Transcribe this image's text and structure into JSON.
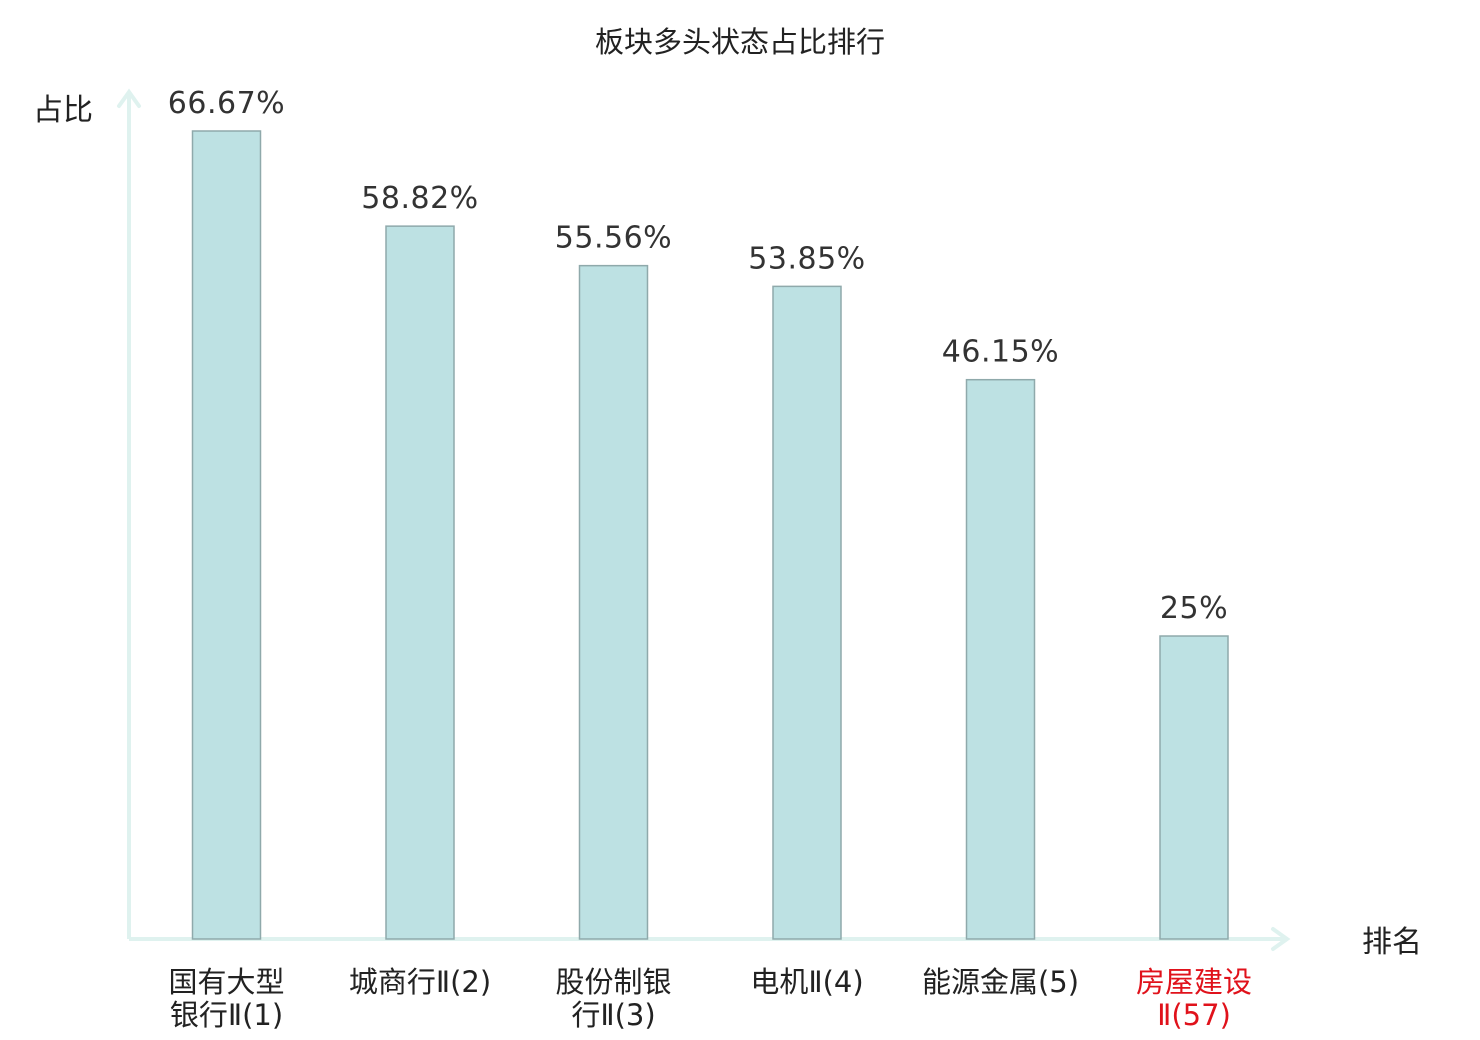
{
  "chart_data": {
    "type": "bar",
    "title": "板块多头状态占比排行",
    "ylabel": "占比",
    "xlabel": "排名",
    "ylim": [
      0,
      70
    ],
    "grid": false,
    "categories": [
      [
        "国有大型",
        "银行Ⅱ(1)"
      ],
      [
        "城商行Ⅱ(2)"
      ],
      [
        "股份制银",
        "行Ⅱ(3)"
      ],
      [
        "电机Ⅱ(4)"
      ],
      [
        "能源金属(5)"
      ],
      [
        "房屋建设",
        "Ⅱ(57)"
      ]
    ],
    "values": [
      66.67,
      58.82,
      55.56,
      53.85,
      46.15,
      25
    ],
    "value_labels": [
      "66.67%",
      "58.82%",
      "55.56%",
      "53.85%",
      "46.15%",
      "25%"
    ],
    "highlight_index": 5,
    "colors": {
      "bar_fill": "#bde1e3",
      "bar_stroke": "#8fa9ab",
      "axis": "#dff2ef",
      "highlight_text": "#e0121b",
      "text": "#222222"
    }
  }
}
